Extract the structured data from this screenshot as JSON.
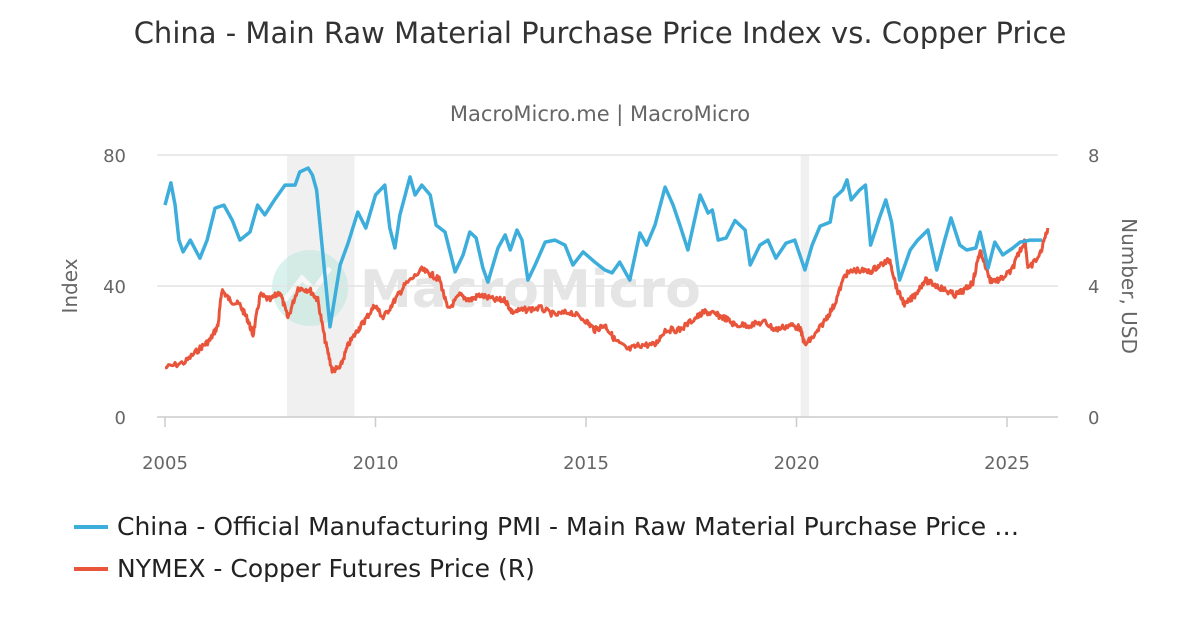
{
  "chart_data": {
    "type": "line",
    "title": "China - Main Raw Material Purchase Price Index vs. Copper Price",
    "subtitle": "MacroMicro.me | MacroMicro",
    "watermark": "MacroMicro",
    "ylabel_left": "Index",
    "ylabel_right": "Number, USD",
    "xlim": [
      2005,
      2026
    ],
    "ylim_left": [
      0,
      80
    ],
    "ylim_right": [
      0,
      8
    ],
    "x_ticks": [
      "2005",
      "2010",
      "2015",
      "2020",
      "2025"
    ],
    "y_ticks_left": [
      "0",
      "40",
      "80"
    ],
    "y_ticks_right": [
      "0",
      "4",
      "8"
    ],
    "grid": true,
    "legend_position": "bottom",
    "shaded_periods": [
      [
        2007.9,
        2009.5
      ],
      [
        2020.1,
        2020.3
      ]
    ],
    "series": [
      {
        "name": "China - Official Manufacturing PMI - Main Raw Material Purchase Price …",
        "axis": "left",
        "color": "#3daedb",
        "x": [
          2005.0,
          2005.14,
          2005.24,
          2005.33,
          2005.43,
          2005.6,
          2005.83,
          2006.0,
          2006.19,
          2006.4,
          2006.6,
          2006.78,
          2007.02,
          2007.2,
          2007.37,
          2007.6,
          2007.85,
          2008.09,
          2008.2,
          2008.4,
          2008.5,
          2008.6,
          2008.92,
          2009.16,
          2009.35,
          2009.58,
          2009.77,
          2010.0,
          2010.22,
          2010.34,
          2010.46,
          2010.58,
          2010.82,
          2010.94,
          2011.1,
          2011.3,
          2011.44,
          2011.65,
          2011.89,
          2012.08,
          2012.24,
          2012.39,
          2012.55,
          2012.67,
          2012.91,
          2013.08,
          2013.2,
          2013.36,
          2013.48,
          2013.62,
          2013.79,
          2014.03,
          2014.26,
          2014.5,
          2014.69,
          2014.93,
          2015.21,
          2015.45,
          2015.62,
          2015.8,
          2016.04,
          2016.28,
          2016.44,
          2016.64,
          2016.88,
          2017.07,
          2017.23,
          2017.42,
          2017.71,
          2017.9,
          2018.0,
          2018.14,
          2018.33,
          2018.54,
          2018.78,
          2018.9,
          2019.13,
          2019.32,
          2019.51,
          2019.75,
          2019.96,
          2020.2,
          2020.37,
          2020.56,
          2020.8,
          2020.9,
          2021.1,
          2021.2,
          2021.3,
          2021.5,
          2021.64,
          2021.76,
          2021.97,
          2022.12,
          2022.26,
          2022.45,
          2022.7,
          2022.88,
          2023.12,
          2023.33,
          2023.52,
          2023.67,
          2023.88,
          2024.04,
          2024.26,
          2024.36,
          2024.55,
          2024.71,
          2024.9,
          2025.14,
          2025.31,
          2025.55,
          2025.83
        ],
        "values": [
          64.7,
          71.5,
          64.7,
          54,
          50.4,
          54,
          48.5,
          54,
          63.8,
          64.7,
          60,
          54,
          56.5,
          64.7,
          61.7,
          66.3,
          70.8,
          70.8,
          74.8,
          76,
          73.9,
          69.3,
          27.5,
          46.4,
          53.1,
          62.6,
          57.7,
          67.8,
          70.8,
          57.7,
          51.6,
          61.7,
          73.3,
          67.8,
          70.8,
          67.8,
          58.6,
          56.5,
          44.3,
          49.5,
          56.5,
          54.7,
          45.5,
          41.2,
          51.6,
          55.6,
          51,
          57.1,
          54,
          41.8,
          46.4,
          53.4,
          54,
          52.5,
          46.4,
          50.4,
          47.3,
          44.9,
          44,
          47.3,
          41.8,
          56.2,
          52.5,
          58.6,
          70.2,
          64.7,
          58.6,
          51,
          67.8,
          62.3,
          63.2,
          54,
          54.7,
          60,
          57.1,
          46.4,
          52.5,
          54,
          48.5,
          53.1,
          54,
          44.9,
          52.5,
          58.3,
          59.5,
          66.9,
          69.3,
          72.4,
          66.3,
          69.3,
          70.8,
          52.5,
          60.8,
          66.3,
          59.5,
          41.8,
          51,
          54,
          57.1,
          44.9,
          54,
          60.8,
          52.5,
          51,
          51.6,
          56.5,
          45.5,
          53.4,
          49.5,
          51.6,
          53.4,
          54,
          54
        ]
      },
      {
        "name": "NYMEX - Copper Futures Price (R)",
        "axis": "right",
        "color": "#e8553a",
        "x": [
          2005.0,
          2005.48,
          2005.83,
          2006.07,
          2006.26,
          2006.35,
          2006.54,
          2006.78,
          2006.97,
          2007.09,
          2007.26,
          2007.5,
          2007.73,
          2007.92,
          2008.16,
          2008.44,
          2008.63,
          2008.8,
          2008.97,
          2009.16,
          2009.35,
          2009.58,
          2009.75,
          2009.99,
          2010.18,
          2010.46,
          2010.7,
          2011.1,
          2011.34,
          2011.53,
          2011.72,
          2012.0,
          2012.24,
          2012.48,
          2012.84,
          2013.08,
          2013.24,
          2013.55,
          2013.91,
          2014.26,
          2014.62,
          2014.98,
          2015.21,
          2015.45,
          2015.69,
          2016.0,
          2016.28,
          2016.64,
          2016.88,
          2017.23,
          2017.59,
          2017.83,
          2018.06,
          2018.3,
          2018.54,
          2018.9,
          2019.25,
          2019.49,
          2019.85,
          2020.08,
          2020.2,
          2020.44,
          2020.68,
          2020.9,
          2021.15,
          2021.39,
          2021.74,
          2021.98,
          2022.22,
          2022.39,
          2022.58,
          2022.81,
          2023.05,
          2023.29,
          2023.52,
          2023.76,
          2024.0,
          2024.19,
          2024.36,
          2024.6,
          2024.83,
          2025.12,
          2025.26,
          2025.43,
          2025.5,
          2025.78,
          2025.97
        ],
        "values": [
          1.5,
          1.68,
          2.1,
          2.35,
          2.8,
          3.88,
          3.57,
          3.42,
          2.96,
          2.5,
          3.72,
          3.57,
          3.82,
          3.02,
          3.94,
          3.88,
          3.57,
          2.35,
          1.43,
          1.5,
          2.2,
          2.66,
          2.96,
          3.42,
          3.02,
          3.57,
          4.03,
          4.49,
          4.34,
          4.18,
          3.27,
          3.72,
          3.57,
          3.72,
          3.57,
          3.57,
          3.21,
          3.27,
          3.33,
          3.11,
          3.21,
          2.96,
          2.66,
          2.81,
          2.35,
          2.05,
          2.2,
          2.2,
          2.66,
          2.66,
          3.02,
          3.21,
          3.14,
          3.02,
          2.81,
          2.81,
          2.9,
          2.66,
          2.81,
          2.72,
          2.2,
          2.5,
          2.96,
          3.42,
          4.34,
          4.49,
          4.43,
          4.64,
          4.79,
          3.88,
          3.42,
          3.72,
          4.18,
          4.03,
          3.88,
          3.72,
          3.88,
          4.12,
          5.1,
          4.18,
          4.18,
          4.49,
          4.95,
          5.4,
          4.49,
          4.95,
          5.77
        ]
      }
    ]
  }
}
